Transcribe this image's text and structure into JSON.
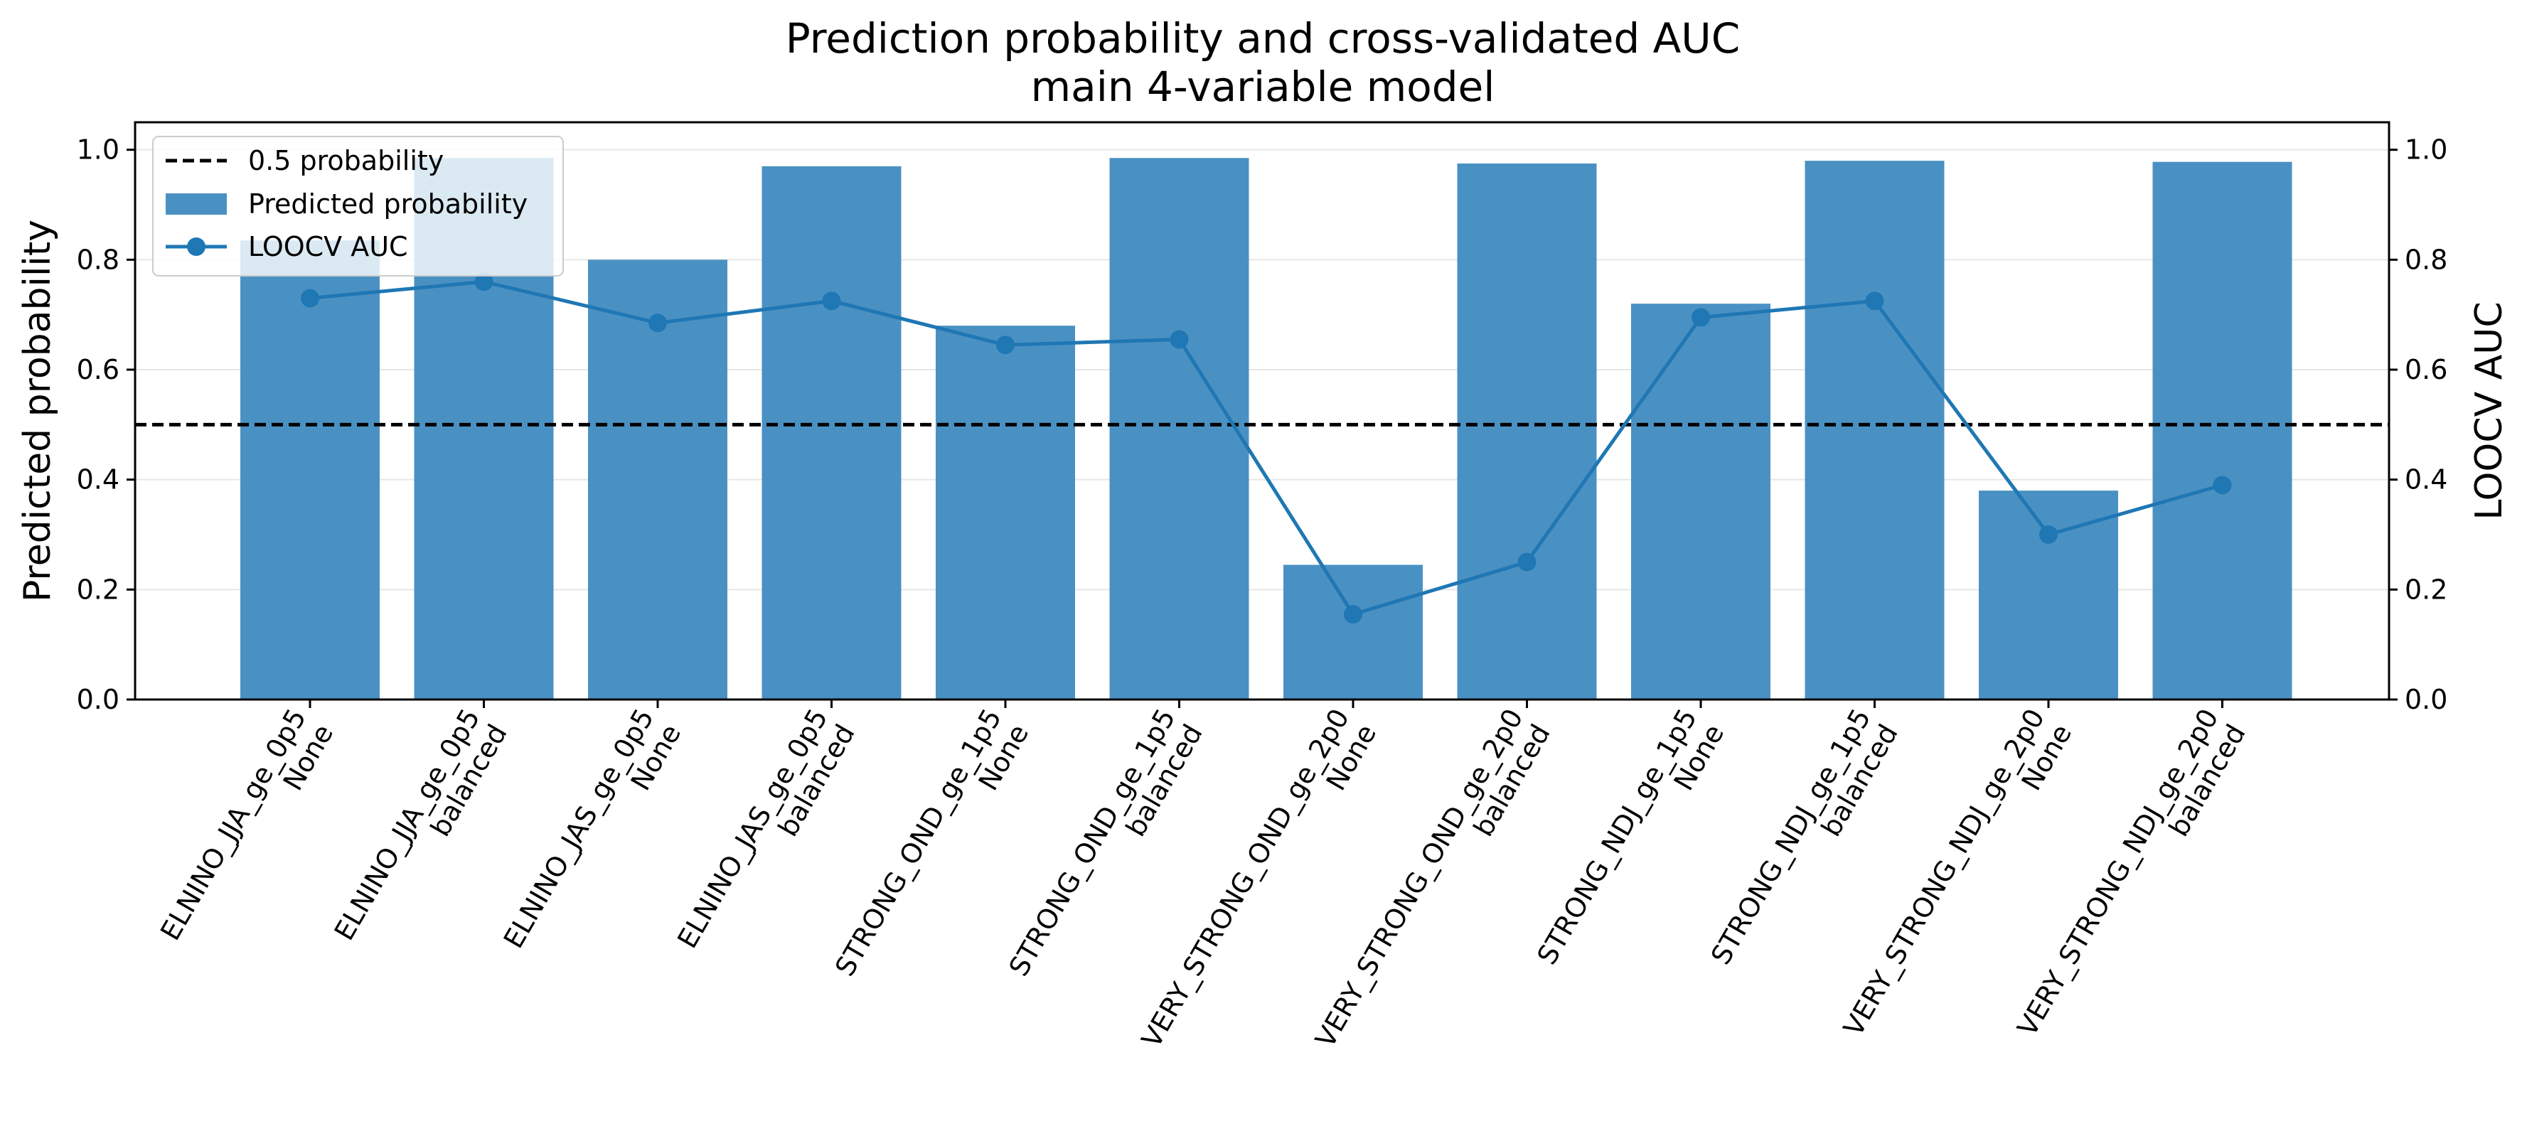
{
  "chart_data": {
    "type": "bar",
    "title": "Prediction probability and cross-validated AUC",
    "subtitle": "main 4-variable model",
    "ylabel": "Predicted probability",
    "ylabel_right": "LOOCV AUC",
    "xlabel": "",
    "ylim": [
      0,
      1.05
    ],
    "ylim_right": [
      0,
      1.05
    ],
    "y_ticks": [
      "0.0",
      "0.2",
      "0.4",
      "0.6",
      "0.8",
      "1.0"
    ],
    "y_ticks_right": [
      "0.0",
      "0.2",
      "0.4",
      "0.6",
      "0.8",
      "1.0"
    ],
    "grid": "horizontal",
    "legend_position": "top-left",
    "categories": [
      {
        "line1": "ELNINO_JJA_ge_0p5",
        "line2": "None"
      },
      {
        "line1": "ELNINO_JJA_ge_0p5",
        "line2": "balanced"
      },
      {
        "line1": "ELNINO_JAS_ge_0p5",
        "line2": "None"
      },
      {
        "line1": "ELNINO_JAS_ge_0p5",
        "line2": "balanced"
      },
      {
        "line1": "STRONG_OND_ge_1p5",
        "line2": "None"
      },
      {
        "line1": "STRONG_OND_ge_1p5",
        "line2": "balanced"
      },
      {
        "line1": "VERY_STRONG_OND_ge_2p0",
        "line2": "None"
      },
      {
        "line1": "VERY_STRONG_OND_ge_2p0",
        "line2": "balanced"
      },
      {
        "line1": "STRONG_NDJ_ge_1p5",
        "line2": "None"
      },
      {
        "line1": "STRONG_NDJ_ge_1p5",
        "line2": "balanced"
      },
      {
        "line1": "VERY_STRONG_NDJ_ge_2p0",
        "line2": "None"
      },
      {
        "line1": "VERY_STRONG_NDJ_ge_2p0",
        "line2": "balanced"
      }
    ],
    "series": [
      {
        "name": "Predicted probability",
        "kind": "bar",
        "axis": "left",
        "color": "#4a91c3",
        "values": [
          0.835,
          0.985,
          0.8,
          0.97,
          0.68,
          0.985,
          0.245,
          0.975,
          0.72,
          0.98,
          0.38,
          0.978
        ]
      },
      {
        "name": "LOOCV AUC",
        "kind": "line",
        "axis": "right",
        "color": "#1f77b4",
        "values": [
          0.73,
          0.76,
          0.685,
          0.725,
          0.645,
          0.655,
          0.155,
          0.25,
          0.695,
          0.725,
          0.3,
          0.39
        ]
      }
    ],
    "reference_line": {
      "name": "0.5 probability",
      "value": 0.5,
      "style": "dashed",
      "color": "#000000"
    },
    "legend": [
      "0.5 probability",
      "Predicted probability",
      "LOOCV AUC"
    ]
  }
}
